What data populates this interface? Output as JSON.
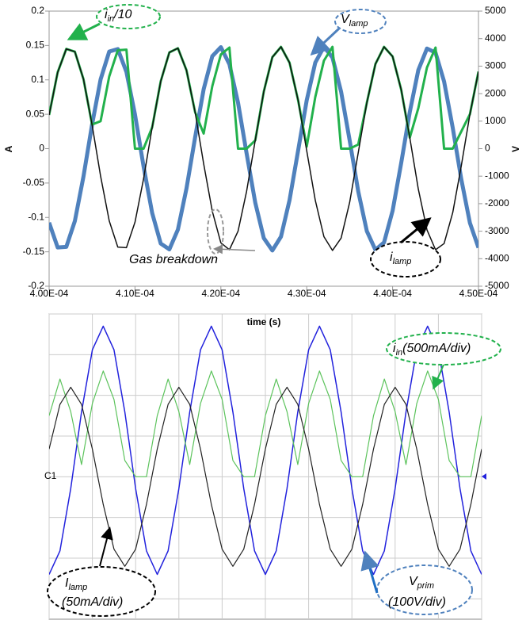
{
  "chart_data": [
    {
      "type": "line",
      "x_label": "time (s)",
      "y_label": "A",
      "y2_label": "V",
      "x": [
        0.0004,
        0.000401,
        0.000402,
        0.000403,
        0.000404,
        0.000405,
        0.000406,
        0.000407,
        0.000408,
        0.000409,
        0.00041,
        0.000411,
        0.000412,
        0.000413,
        0.000414,
        0.000415,
        0.000416,
        0.000417,
        0.000418,
        0.000419,
        0.00042,
        0.000421,
        0.000422,
        0.000423,
        0.000424,
        0.000425,
        0.000426,
        0.000427,
        0.000428,
        0.000429,
        0.00043,
        0.000431,
        0.000432,
        0.000433,
        0.000434,
        0.000435,
        0.000436,
        0.000437,
        0.000438,
        0.000439,
        0.00044,
        0.000441,
        0.000442,
        0.000443,
        0.000444,
        0.000445,
        0.000446,
        0.000447,
        0.000448,
        0.000449,
        0.00045
      ],
      "xlim": [
        0.0004,
        0.00045
      ],
      "xticks": [
        {
          "value": 0.0004,
          "label": "4.00E-04"
        },
        {
          "value": 0.00041,
          "label": "4.10E-04"
        },
        {
          "value": 0.00042,
          "label": "4.20E-04"
        },
        {
          "value": 0.00043,
          "label": "4.30E-04"
        },
        {
          "value": 0.00044,
          "label": "4.40E-04"
        },
        {
          "value": 0.00045,
          "label": "4.50E-04"
        }
      ],
      "ylim": [
        -0.2,
        0.2
      ],
      "yticks": [
        0.2,
        0.15,
        0.1,
        0.05,
        0,
        -0.05,
        -0.1,
        -0.15,
        -0.2
      ],
      "y2lim": [
        -5000,
        5000
      ],
      "y2ticks": [
        5000,
        4000,
        3000,
        2000,
        1000,
        0,
        -1000,
        -2000,
        -3000,
        -4000,
        -5000
      ],
      "grid": false,
      "series": [
        {
          "color": "#4f81bd",
          "width": 5,
          "axis": "y2",
          "values": [
            -2690,
            -3590,
            -3570,
            -2630,
            -1010,
            870,
            2520,
            3530,
            3620,
            2790,
            1240,
            -640,
            -2340,
            -3450,
            -3660,
            -2940,
            -1450,
            410,
            2160,
            3360,
            3690,
            3070,
            1670,
            -170,
            -1960,
            -3250,
            -3700,
            -3200,
            -1870,
            -60,
            1760,
            3130,
            3700,
            3310,
            2070,
            300,
            -1550,
            -3000,
            -3680,
            -3410,
            -2260,
            -530,
            1330,
            2860,
            3640,
            3490,
            2440,
            760,
            -1110,
            -2700,
            -3600
          ]
        },
        {
          "color": "#22b14c",
          "width": 3,
          "values": [
            0.049,
            0.111,
            0.145,
            0.141,
            0.101,
            0.035,
            0.04,
            0.105,
            0.143,
            0.144,
            0,
            0,
            0.031,
            0.098,
            0.14,
            0.146,
            0.114,
            0.053,
            0.022,
            0.091,
            0.137,
            0.147,
            0,
            0,
            0.012,
            0.083,
            0.133,
            0.148,
            0.125,
            0.07,
            0.003,
            0.075,
            0.128,
            0.148,
            0,
            0,
            0.006,
            0.067,
            0.123,
            0.148,
            0.134,
            0.086,
            0.016,
            0.059,
            0.118,
            0.147,
            0,
            0,
            0.025,
            0.05,
            0.112
          ]
        },
        {
          "color": "#111111",
          "width": 1.5,
          "values": [
            0.049,
            0.111,
            0.145,
            0.141,
            0.101,
            0.035,
            -0.04,
            -0.105,
            -0.143,
            -0.144,
            -0.107,
            -0.044,
            0.031,
            0.098,
            0.14,
            0.146,
            0.114,
            0.053,
            -0.022,
            -0.091,
            -0.137,
            -0.147,
            -0.12,
            -0.062,
            0.012,
            0.083,
            0.133,
            0.148,
            0.125,
            0.07,
            -0.003,
            -0.075,
            -0.128,
            -0.148,
            -0.13,
            -0.078,
            -0.006,
            0.067,
            0.123,
            0.148,
            0.134,
            0.086,
            0.016,
            -0.059,
            -0.118,
            -0.147,
            -0.138,
            -0.093,
            -0.025,
            0.05,
            0.112
          ]
        }
      ],
      "annotations": [
        {
          "text": "i",
          "sub": "in",
          "after": "/10"
        },
        {
          "text": "V",
          "sub": "lamp"
        },
        {
          "text": "i",
          "sub": "lamp"
        },
        {
          "text": "Gas breakdown"
        }
      ]
    },
    {
      "type": "line",
      "channel": "C1",
      "x": [
        0,
        0.25,
        0.5,
        0.75,
        1,
        1.25,
        1.5,
        1.75,
        2,
        2.25,
        2.5,
        2.75,
        3,
        3.25,
        3.5,
        3.75,
        4,
        4.25,
        4.5,
        4.75,
        5,
        5.25,
        5.5,
        5.75,
        6,
        6.25,
        6.5,
        6.75,
        7,
        7.25,
        7.5,
        7.75,
        8,
        8.25,
        8.5,
        8.75,
        9,
        9.25,
        9.5,
        9.75,
        10
      ],
      "xlim": [
        0,
        10
      ],
      "xticks": [
        0,
        1,
        2,
        3,
        4,
        5,
        6,
        7,
        8,
        9,
        10
      ],
      "ylim": [
        -3.5,
        4
      ],
      "yticks": [
        -3,
        -2,
        -1,
        0,
        1,
        2,
        3,
        4
      ],
      "grid": true,
      "series": [
        {
          "color": "#2222dd",
          "width": 1.5,
          "values": [
            -2.4,
            -1.82,
            -0.29,
            1.59,
            3.12,
            3.7,
            3.12,
            1.59,
            -0.29,
            -1.82,
            -2.4,
            -1.82,
            -0.29,
            1.59,
            3.12,
            3.7,
            3.12,
            1.59,
            -0.29,
            -1.82,
            -2.4,
            -1.82,
            -0.29,
            1.59,
            3.12,
            3.7,
            3.12,
            1.59,
            -0.29,
            -1.82,
            -2.4,
            -1.82,
            -0.29,
            1.59,
            3.12,
            3.7,
            3.12,
            1.59,
            -0.29,
            -1.82,
            -2.4
          ]
        },
        {
          "color": "#5cc35c",
          "width": 1.2,
          "values": [
            1.5,
            2.4,
            1.6,
            0.3,
            1.8,
            2.6,
            1.9,
            0.4,
            0,
            0,
            1.5,
            2.4,
            1.6,
            0.3,
            1.8,
            2.6,
            1.9,
            0.4,
            0,
            0,
            1.5,
            2.4,
            1.6,
            0.3,
            1.8,
            2.6,
            1.9,
            0.4,
            0,
            0,
            1.5,
            2.4,
            1.6,
            0.3,
            1.8,
            2.6,
            1.9,
            0.4,
            0,
            0,
            1.5
          ]
        },
        {
          "color": "#222222",
          "width": 1.2,
          "values": [
            0.68,
            1.78,
            2.2,
            1.78,
            0.68,
            -0.68,
            -1.78,
            -2.2,
            -1.78,
            -0.68,
            0.68,
            1.78,
            2.2,
            1.78,
            0.68,
            -0.68,
            -1.78,
            -2.2,
            -1.78,
            -0.68,
            0.68,
            1.78,
            2.2,
            1.78,
            0.68,
            -0.68,
            -1.78,
            -2.2,
            -1.78,
            -0.68,
            0.68,
            1.78,
            2.2,
            1.78,
            0.68,
            -0.68,
            -1.78,
            -2.2,
            -1.78,
            -0.68,
            0.68
          ]
        }
      ],
      "annotations": [
        {
          "text": "i",
          "sub": "in",
          "after": "(500mA/div)"
        },
        {
          "text": "I",
          "sub": "lamp",
          "after": "(50mA/div)"
        },
        {
          "text": "V",
          "sub": "prim",
          "after": "(100V/div)"
        }
      ]
    }
  ]
}
